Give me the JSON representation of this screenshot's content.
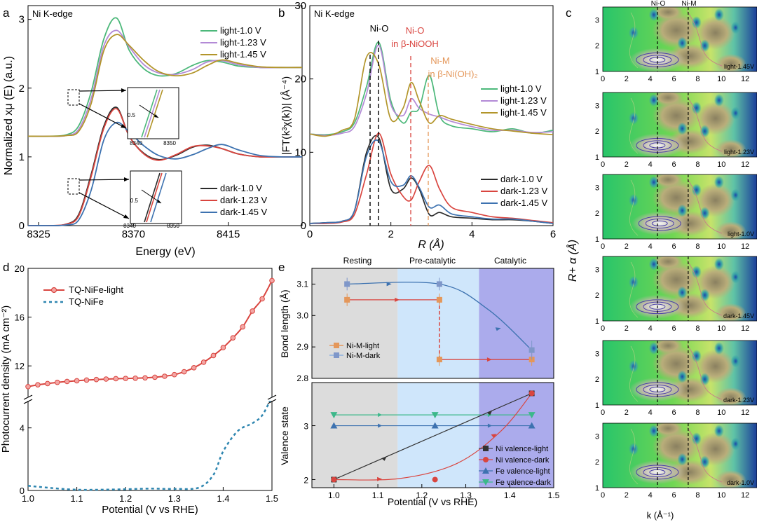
{
  "colors": {
    "green": "#4cb87a",
    "purple": "#b38ad6",
    "olive": "#b2952a",
    "black": "#2b2b2b",
    "red": "#d9453f",
    "blue": "#3d72b0",
    "teal": "#2e86b0",
    "orange": "#e4975a",
    "rest_bg": "#dcdcdc",
    "pre_bg": "#cfe6fb",
    "cat_bg": "#8f8fe6",
    "mapLow": "#12308f",
    "mapHigh": "#d7d7b2"
  },
  "panels": {
    "a": {
      "letter": "a",
      "note": "Ni K-edge",
      "ylabel": "Normalized xμ (E) (a.u.)",
      "xlabel": "Energy (eV)",
      "legend_light": [
        "light-1.0 V",
        "light-1.23 V",
        "light-1.45 V"
      ],
      "legend_dark": [
        "dark-1.0 V",
        "dark-1.23 V",
        "dark-1.45 V"
      ],
      "inset_top_ticks": [
        "0.5",
        "8340",
        "8350"
      ],
      "inset_bottom_ticks": [
        "0.5",
        "8340",
        "8350"
      ]
    },
    "b": {
      "letter": "b",
      "note": "Ni K-edge",
      "ylabel": "|FT(k³χ(k))| (Å⁻⁴)",
      "xlabel": "R (Å)",
      "ann_nio": "Ni-O",
      "ann_nio_ooh_1": "Ni-O",
      "ann_nio_ooh_2": "in β-NiOOH",
      "ann_nim_1": "Ni-M",
      "ann_nim_2": "in β-Ni(OH)₂",
      "legend_light": [
        "light-1.0 V",
        "light-1.23 V",
        "light-1.45 V"
      ],
      "legend_dark": [
        "dark-1.0 V",
        "dark-1.23 V",
        "dark-1.45 V"
      ]
    },
    "c": {
      "letter": "c",
      "ylabel": "R+ α (Å)",
      "xlabel": "k (Å⁻¹)",
      "top_labels": [
        "Ni-O",
        "Ni-M"
      ],
      "maps": [
        "light-1.45V",
        "light-1.23V",
        "light-1.0V",
        "dark-1.45V",
        "dark-1.23V",
        "dark-1.0V"
      ]
    },
    "d": {
      "letter": "d",
      "ylabel": "Photocurrent density (mA cm⁻²)",
      "xlabel": "Potential (V vs RHE)",
      "legend": [
        "TQ-NiFe-light",
        "TQ-NiFe"
      ]
    },
    "e": {
      "letter": "e",
      "regions": [
        "Resting",
        "Pre-catalytic",
        "Catalytic"
      ],
      "ylabel_top": "Bond length (Å)",
      "ylabel_bottom": "Valence state",
      "xlabel": "Potential (V vs RHE)",
      "legend_top": [
        "Ni-M-light",
        "Ni-M-dark"
      ],
      "legend_bottom": [
        "Ni valence-light",
        "Ni valence-dark",
        "Fe valence-light",
        "Fe valence-dark"
      ]
    }
  },
  "chart_data": [
    {
      "panel": "a",
      "type": "line",
      "title": "",
      "xlabel": "Energy (eV)",
      "ylabel": "Normalized xμ (E) (a.u.)",
      "xlim": [
        8320,
        8450
      ],
      "ylim": [
        0,
        3.2
      ],
      "xticks": [
        8325,
        8370,
        8415
      ],
      "yticks": [
        0,
        1,
        2,
        3
      ],
      "series": [
        {
          "name": "light-1.0 V",
          "x": [
            8320,
            8330,
            8338,
            8344,
            8350,
            8356,
            8362,
            8368,
            8375,
            8382,
            8390,
            8398,
            8405,
            8412,
            8420,
            8430,
            8440,
            8450
          ],
          "y": [
            1.3,
            1.3,
            1.32,
            1.45,
            1.95,
            2.72,
            3.02,
            2.55,
            2.28,
            2.18,
            2.21,
            2.33,
            2.4,
            2.38,
            2.32,
            2.3,
            2.3,
            2.3
          ]
        },
        {
          "name": "light-1.23 V",
          "x": [
            8320,
            8330,
            8338,
            8344,
            8350,
            8356,
            8362,
            8368,
            8375,
            8382,
            8390,
            8398,
            8405,
            8412,
            8420,
            8430,
            8440,
            8450
          ],
          "y": [
            1.3,
            1.3,
            1.31,
            1.4,
            1.85,
            2.62,
            2.84,
            2.6,
            2.34,
            2.22,
            2.2,
            2.27,
            2.38,
            2.4,
            2.34,
            2.3,
            2.3,
            2.3
          ]
        },
        {
          "name": "light-1.45 V",
          "x": [
            8320,
            8330,
            8338,
            8344,
            8350,
            8356,
            8362,
            8368,
            8375,
            8382,
            8390,
            8398,
            8405,
            8412,
            8420,
            8430,
            8440,
            8450
          ],
          "y": [
            1.3,
            1.3,
            1.31,
            1.37,
            1.78,
            2.55,
            2.78,
            2.62,
            2.4,
            2.24,
            2.18,
            2.22,
            2.33,
            2.41,
            2.36,
            2.31,
            2.3,
            2.3
          ]
        },
        {
          "name": "dark-1.0 V",
          "x": [
            8320,
            8330,
            8338,
            8344,
            8350,
            8356,
            8362,
            8368,
            8375,
            8382,
            8390,
            8398,
            8405,
            8412,
            8420,
            8430,
            8440,
            8450
          ],
          "y": [
            0,
            0,
            0.02,
            0.16,
            0.75,
            1.45,
            1.72,
            1.3,
            1.05,
            0.96,
            1.02,
            1.14,
            1.17,
            1.12,
            1.04,
            1.0,
            1.0,
            1.0
          ]
        },
        {
          "name": "dark-1.23 V",
          "x": [
            8320,
            8330,
            8338,
            8344,
            8350,
            8356,
            8362,
            8368,
            8375,
            8382,
            8390,
            8398,
            8405,
            8412,
            8420,
            8430,
            8440,
            8450
          ],
          "y": [
            0,
            0,
            0.02,
            0.14,
            0.72,
            1.42,
            1.7,
            1.3,
            1.04,
            0.95,
            1.03,
            1.15,
            1.16,
            1.12,
            1.04,
            1.0,
            1.0,
            1.0
          ]
        },
        {
          "name": "dark-1.45 V",
          "x": [
            8320,
            8330,
            8338,
            8344,
            8350,
            8356,
            8362,
            8368,
            8375,
            8382,
            8390,
            8398,
            8405,
            8412,
            8420,
            8430,
            8440,
            8450
          ],
          "y": [
            0,
            0,
            0.01,
            0.08,
            0.52,
            1.25,
            1.5,
            1.36,
            1.16,
            1.02,
            0.97,
            1.03,
            1.12,
            1.18,
            1.1,
            1.02,
            1.0,
            1.0
          ]
        }
      ]
    },
    {
      "panel": "b",
      "type": "line",
      "title": "",
      "xlabel": "R (Å)",
      "ylabel": "|FT(k³χ(k))| (Å⁻⁴)",
      "xlim": [
        0,
        6
      ],
      "ylim": [
        0,
        30
      ],
      "xticks": [
        0,
        2,
        4,
        6
      ],
      "yticks": [
        0,
        10,
        20,
        30
      ],
      "series": [
        {
          "name": "light-1.0 V",
          "x": [
            0,
            0.4,
            0.8,
            1.1,
            1.4,
            1.7,
            2.0,
            2.3,
            2.5,
            2.7,
            2.95,
            3.2,
            3.5,
            4.0,
            4.5,
            5.0,
            5.5,
            6.0
          ],
          "y": [
            12.5,
            12.4,
            12.8,
            14,
            19,
            25,
            17,
            14,
            15.5,
            16,
            20.5,
            15,
            13.6,
            13.2,
            12.8,
            13.2,
            12.6,
            13.0
          ]
        },
        {
          "name": "light-1.23 V",
          "x": [
            0,
            0.4,
            0.8,
            1.1,
            1.4,
            1.7,
            2.0,
            2.3,
            2.5,
            2.7,
            2.95,
            3.2,
            3.5,
            4.0,
            4.5,
            5.0,
            5.5,
            6.0
          ],
          "y": [
            12.5,
            12.3,
            12.6,
            13.5,
            18,
            24.6,
            16.5,
            15,
            17.3,
            16,
            15.2,
            14.8,
            14.2,
            13.5,
            13.0,
            13.0,
            12.7,
            12.8
          ]
        },
        {
          "name": "light-1.45 V",
          "x": [
            0,
            0.4,
            0.8,
            1.1,
            1.4,
            1.7,
            2.0,
            2.3,
            2.5,
            2.7,
            2.95,
            3.2,
            3.5,
            4.0,
            4.5,
            5.0,
            5.5,
            6.0
          ],
          "y": [
            12.5,
            12.2,
            13,
            14.5,
            23,
            22,
            14.5,
            16,
            19.5,
            17,
            14,
            15,
            14.5,
            13.8,
            13.2,
            12.9,
            12.6,
            12.4
          ]
        },
        {
          "name": "dark-1.0 V",
          "x": [
            0,
            0.4,
            0.8,
            1.1,
            1.4,
            1.7,
            2.0,
            2.3,
            2.5,
            2.7,
            2.95,
            3.2,
            3.5,
            4.0,
            4.5,
            5.0,
            5.5,
            6.0
          ],
          "y": [
            0.3,
            0.4,
            0.6,
            2,
            10,
            12,
            5,
            5,
            6.5,
            5,
            1.5,
            1.8,
            1.2,
            1.0,
            0.8,
            0.8,
            0.6,
            0.3
          ]
        },
        {
          "name": "dark-1.23 V",
          "x": [
            0,
            0.4,
            0.8,
            1.1,
            1.4,
            1.7,
            2.0,
            2.3,
            2.5,
            2.7,
            2.95,
            3.2,
            3.5,
            4.0,
            4.5,
            5.0,
            5.5,
            6.0
          ],
          "y": [
            0.3,
            0.3,
            0.5,
            1.5,
            7,
            12.6,
            7,
            4,
            3.5,
            6,
            8.2,
            5,
            2.5,
            1.8,
            1.2,
            1.0,
            0.7,
            0.4
          ]
        },
        {
          "name": "dark-1.45 V",
          "x": [
            0,
            0.4,
            0.8,
            1.1,
            1.4,
            1.7,
            2.0,
            2.3,
            2.5,
            2.7,
            2.95,
            3.2,
            3.5,
            4.0,
            4.5,
            5.0,
            5.5,
            6.0
          ],
          "y": [
            0.3,
            0.4,
            0.6,
            2,
            9.5,
            11.5,
            6,
            5.5,
            6.8,
            5.2,
            2.5,
            2.8,
            1.6,
            1.2,
            0.9,
            0.9,
            0.6,
            0.3
          ]
        }
      ]
    },
    {
      "panel": "c",
      "type": "heatmap",
      "title": "",
      "xlabel": "k (Å⁻¹)",
      "ylabel": "R+ α (Å)",
      "xlim": [
        0,
        13
      ],
      "ylim": [
        1,
        3.5
      ],
      "xticks": [
        0,
        2,
        4,
        6,
        8,
        10,
        12
      ],
      "yticks": [
        1,
        2,
        3
      ],
      "maps": [
        {
          "name": "light-1.45V",
          "main_peak": [
            4.6,
            1.45
          ]
        },
        {
          "name": "light-1.23V",
          "main_peak": [
            4.6,
            1.45
          ]
        },
        {
          "name": "light-1.0V",
          "main_peak": [
            4.8,
            1.6
          ]
        },
        {
          "name": "dark-1.45V",
          "main_peak": [
            4.6,
            1.55
          ]
        },
        {
          "name": "dark-1.23V",
          "main_peak": [
            4.6,
            1.6
          ]
        },
        {
          "name": "dark-1.0V",
          "main_peak": [
            4.6,
            1.6
          ]
        }
      ]
    },
    {
      "panel": "d",
      "type": "line",
      "title": "",
      "xlabel": "Potential (V vs RHE)",
      "ylabel": "Photocurrent density (mA cm⁻²)",
      "xlim": [
        1.0,
        1.5
      ],
      "xticks": [
        1.0,
        1.1,
        1.2,
        1.3,
        1.4,
        1.5
      ],
      "yticks": [
        0,
        4,
        12,
        16,
        20
      ],
      "axis_break": true,
      "series": [
        {
          "name": "TQ-NiFe-light",
          "x": [
            1.0,
            1.02,
            1.04,
            1.06,
            1.08,
            1.1,
            1.12,
            1.14,
            1.16,
            1.18,
            1.2,
            1.22,
            1.24,
            1.26,
            1.28,
            1.3,
            1.32,
            1.34,
            1.36,
            1.38,
            1.4,
            1.42,
            1.44,
            1.46,
            1.48,
            1.5
          ],
          "y": [
            10.3,
            10.45,
            10.55,
            10.65,
            10.72,
            10.78,
            10.84,
            10.88,
            10.92,
            10.95,
            10.97,
            10.99,
            11.02,
            11.07,
            11.15,
            11.28,
            11.52,
            11.85,
            12.3,
            12.85,
            13.5,
            14.3,
            15.2,
            16.5,
            17.5,
            19.0
          ]
        },
        {
          "name": "TQ-NiFe",
          "x": [
            1.0,
            1.05,
            1.1,
            1.15,
            1.2,
            1.25,
            1.3,
            1.35,
            1.38,
            1.4,
            1.43,
            1.46,
            1.48,
            1.5
          ],
          "y": [
            0.3,
            0.15,
            0.05,
            0.05,
            0.08,
            0.12,
            0.1,
            0.18,
            1.0,
            2.5,
            3.8,
            4.3,
            4.8,
            6.0
          ]
        }
      ]
    },
    {
      "panel": "e",
      "type": "scatter",
      "title": "",
      "xlabel": "Potential (V vs RHE)",
      "xlim": [
        0.95,
        1.5
      ],
      "xticks": [
        1.0,
        1.1,
        1.2,
        1.3,
        1.4,
        1.5
      ],
      "top": {
        "ylabel": "Bond length (Å)",
        "ylim": [
          2.8,
          3.15
        ],
        "yticks": [
          2.8,
          2.9,
          3.0,
          3.1
        ],
        "series": [
          {
            "name": "Ni-M-light",
            "x": [
              1.03,
              1.24,
              1.24,
              1.45
            ],
            "y": [
              3.05,
              3.05,
              2.86,
              2.86
            ],
            "err": [
              0.02,
              0.02,
              0.02,
              0.02
            ]
          },
          {
            "name": "Ni-M-dark",
            "x": [
              1.03,
              1.24,
              1.45
            ],
            "y": [
              3.1,
              3.1,
              2.89
            ],
            "err": [
              0.02,
              0.02,
              0.03
            ]
          }
        ]
      },
      "bottom": {
        "ylabel": "Valence state",
        "ylim": [
          1.85,
          3.8
        ],
        "yticks": [
          2,
          3
        ],
        "series": [
          {
            "name": "Ni valence-light",
            "x": [
              1.0,
              1.45
            ],
            "y": [
              2.0,
              3.6
            ]
          },
          {
            "name": "Ni valence-dark",
            "x": [
              1.0,
              1.23,
              1.45
            ],
            "y": [
              2.0,
              2.0,
              3.6
            ]
          },
          {
            "name": "Fe valence-light",
            "x": [
              1.0,
              1.23,
              1.45
            ],
            "y": [
              3.0,
              3.0,
              3.0
            ]
          },
          {
            "name": "Fe valence-dark",
            "x": [
              1.0,
              1.23,
              1.45
            ],
            "y": [
              3.2,
              3.2,
              3.2
            ]
          }
        ]
      },
      "regions": [
        {
          "name": "Resting",
          "x": [
            0.95,
            1.145
          ]
        },
        {
          "name": "Pre-catalytic",
          "x": [
            1.145,
            1.33
          ]
        },
        {
          "name": "Catalytic",
          "x": [
            1.33,
            1.5
          ]
        }
      ]
    }
  ]
}
